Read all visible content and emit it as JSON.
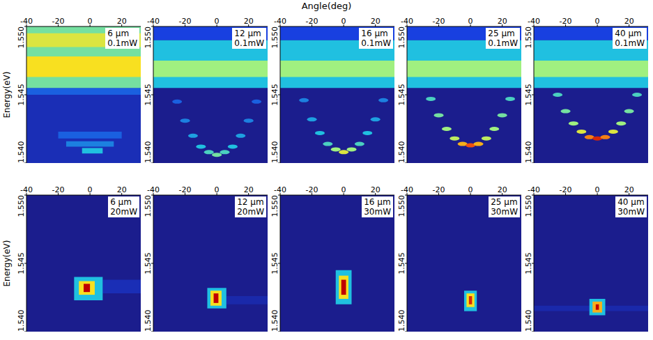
{
  "xlabel": "Angle(deg)",
  "chart_data": [
    {
      "type": "heatmap",
      "ylabel": "Energy(eV)",
      "annotations": [
        "6 μm",
        "0.1mW"
      ],
      "xlim": [
        -40,
        32
      ],
      "ylim": [
        1.54,
        1.55
      ],
      "xticks": [
        -40,
        -20,
        0,
        20
      ],
      "yticks": [
        {
          "value": 1.54,
          "label": "1.540"
        },
        1.545,
        {
          "value": 1.55,
          "label": "1.550"
        }
      ],
      "cells": [
        {
          "x": [
            -40,
            32
          ],
          "y": [
            1.54,
            1.55
          ],
          "value": 0.15
        },
        {
          "x": [
            -40,
            32
          ],
          "y": [
            1.545,
            1.5455
          ],
          "value": 0.3
        },
        {
          "x": [
            -40,
            32
          ],
          "y": [
            1.5455,
            1.55
          ],
          "value": 0.55
        },
        {
          "x": [
            -40,
            32
          ],
          "y": [
            1.5463,
            1.5478
          ],
          "value": 0.75
        },
        {
          "x": [
            -40,
            32
          ],
          "y": [
            1.5485,
            1.5495
          ],
          "value": 0.7
        },
        {
          "x": [
            -20,
            20
          ],
          "y": [
            1.5418,
            1.5423
          ],
          "value": 0.3
        },
        {
          "x": [
            -15,
            15
          ],
          "y": [
            1.5412,
            1.5416
          ],
          "value": 0.35
        },
        {
          "x": [
            -5,
            8
          ],
          "y": [
            1.5407,
            1.5411
          ],
          "value": 0.45
        }
      ],
      "points": {
        "x": [],
        "y": [],
        "values": []
      }
    },
    {
      "type": "heatmap",
      "annotations": [
        "12 μm",
        "0.1mW"
      ],
      "xlim": [
        -40,
        32
      ],
      "ylim": [
        1.54,
        1.55
      ],
      "xticks": [
        -40,
        -20,
        0,
        20
      ],
      "yticks": [
        {
          "value": 1.54,
          "label": "1.540"
        },
        1.545,
        {
          "value": 1.55,
          "label": "1.550"
        }
      ],
      "cells": [
        {
          "x": [
            -40,
            32
          ],
          "y": [
            1.54,
            1.55
          ],
          "value": 0.05
        },
        {
          "x": [
            -40,
            32
          ],
          "y": [
            1.5455,
            1.549
          ],
          "value": 0.45
        },
        {
          "x": [
            -40,
            32
          ],
          "y": [
            1.5463,
            1.5475
          ],
          "value": 0.6
        },
        {
          "x": [
            -40,
            32
          ],
          "y": [
            1.549,
            1.55
          ],
          "value": 0.25
        }
      ],
      "points": {
        "x": [
          -25,
          -20,
          -15,
          -10,
          -5,
          0,
          5,
          10,
          15,
          20,
          25
        ],
        "y": [
          1.5445,
          1.5431,
          1.542,
          1.5412,
          1.5408,
          1.5406,
          1.5408,
          1.5412,
          1.542,
          1.5431,
          1.5445
        ],
        "values": [
          0.3,
          0.35,
          0.4,
          0.45,
          0.5,
          0.55,
          0.5,
          0.45,
          0.4,
          0.35,
          0.3
        ]
      }
    },
    {
      "type": "heatmap",
      "annotations": [
        "16 μm",
        "0.1mW"
      ],
      "xlim": [
        -40,
        32
      ],
      "ylim": [
        1.54,
        1.55
      ],
      "xticks": [
        -40,
        -20,
        0,
        20
      ],
      "yticks": [
        {
          "value": 1.54,
          "label": "1.540"
        },
        1.545,
        {
          "value": 1.55,
          "label": "1.550"
        }
      ],
      "cells": [
        {
          "x": [
            -40,
            32
          ],
          "y": [
            1.54,
            1.55
          ],
          "value": 0.05
        },
        {
          "x": [
            -40,
            32
          ],
          "y": [
            1.5455,
            1.549
          ],
          "value": 0.45
        },
        {
          "x": [
            -40,
            32
          ],
          "y": [
            1.5463,
            1.5475
          ],
          "value": 0.6
        },
        {
          "x": [
            -40,
            32
          ],
          "y": [
            1.549,
            1.55
          ],
          "value": 0.25
        }
      ],
      "points": {
        "x": [
          -25,
          -20,
          -15,
          -10,
          -5,
          0,
          5,
          10,
          15,
          20,
          25
        ],
        "y": [
          1.5446,
          1.5432,
          1.5422,
          1.5414,
          1.541,
          1.5408,
          1.541,
          1.5414,
          1.5422,
          1.5432,
          1.5446
        ],
        "values": [
          0.35,
          0.4,
          0.45,
          0.5,
          0.6,
          0.7,
          0.6,
          0.5,
          0.45,
          0.4,
          0.35
        ]
      }
    },
    {
      "type": "heatmap",
      "annotations": [
        "25 μm",
        "0.1mW"
      ],
      "xlim": [
        -40,
        32
      ],
      "ylim": [
        1.54,
        1.55
      ],
      "xticks": [
        -40,
        -20,
        0,
        20
      ],
      "yticks": [
        {
          "value": 1.54,
          "label": "1.540"
        },
        1.545,
        {
          "value": 1.55,
          "label": "1.550"
        }
      ],
      "cells": [
        {
          "x": [
            -40,
            32
          ],
          "y": [
            1.54,
            1.55
          ],
          "value": 0.05
        },
        {
          "x": [
            -40,
            32
          ],
          "y": [
            1.5455,
            1.549
          ],
          "value": 0.45
        },
        {
          "x": [
            -40,
            32
          ],
          "y": [
            1.5463,
            1.5475
          ],
          "value": 0.6
        },
        {
          "x": [
            -40,
            32
          ],
          "y": [
            1.549,
            1.55
          ],
          "value": 0.25
        }
      ],
      "points": {
        "x": [
          -25,
          -20,
          -15,
          -10,
          -5,
          0,
          5,
          10,
          15,
          20,
          25
        ],
        "y": [
          1.5447,
          1.5435,
          1.5425,
          1.5418,
          1.5414,
          1.5413,
          1.5414,
          1.5418,
          1.5425,
          1.5435,
          1.5447
        ],
        "values": [
          0.5,
          0.55,
          0.6,
          0.65,
          0.8,
          0.9,
          0.8,
          0.65,
          0.6,
          0.55,
          0.5
        ]
      }
    },
    {
      "type": "heatmap",
      "annotations": [
        "40 μm",
        "0.1mW"
      ],
      "xlim": [
        -40,
        32
      ],
      "ylim": [
        1.54,
        1.55
      ],
      "xticks": [
        -40,
        -20,
        0,
        20
      ],
      "yticks": [
        {
          "value": 1.54,
          "label": "1.540"
        },
        1.545,
        {
          "value": 1.55,
          "label": "1.550"
        }
      ],
      "cells": [
        {
          "x": [
            -40,
            32
          ],
          "y": [
            1.54,
            1.55
          ],
          "value": 0.05
        },
        {
          "x": [
            -40,
            32
          ],
          "y": [
            1.5455,
            1.549
          ],
          "value": 0.45
        },
        {
          "x": [
            -40,
            32
          ],
          "y": [
            1.5463,
            1.5475
          ],
          "value": 0.6
        },
        {
          "x": [
            -40,
            32
          ],
          "y": [
            1.549,
            1.55
          ],
          "value": 0.25
        }
      ],
      "points": {
        "x": [
          -25,
          -20,
          -15,
          -10,
          -5,
          0,
          5,
          10,
          15,
          20,
          25
        ],
        "y": [
          1.545,
          1.5438,
          1.5429,
          1.5423,
          1.5419,
          1.5418,
          1.5419,
          1.5423,
          1.5429,
          1.5438,
          1.545
        ],
        "values": [
          0.5,
          0.55,
          0.6,
          0.7,
          0.85,
          0.95,
          0.85,
          0.7,
          0.6,
          0.55,
          0.5
        ]
      }
    },
    {
      "type": "heatmap",
      "ylabel": "Energy(eV)",
      "annotations": [
        "6 μm",
        "20mW"
      ],
      "xlim": [
        -40,
        32
      ],
      "ylim": [
        1.54,
        1.55
      ],
      "xticks": [
        -40,
        -20,
        0,
        20
      ],
      "yticks": [
        {
          "value": 1.54,
          "label": "1.540"
        },
        1.545,
        {
          "value": 1.55,
          "label": "1.550"
        }
      ],
      "cells": [
        {
          "x": [
            -40,
            32
          ],
          "y": [
            1.54,
            1.55
          ],
          "value": 0.05
        },
        {
          "x": [
            8,
            32
          ],
          "y": [
            1.5428,
            1.5438
          ],
          "value": 0.15
        },
        {
          "x": [
            -10,
            8
          ],
          "y": [
            1.5423,
            1.544
          ],
          "value": 0.45
        },
        {
          "x": [
            -7,
            3
          ],
          "y": [
            1.5427,
            1.5437
          ],
          "value": 0.75
        },
        {
          "x": [
            -4,
            0
          ],
          "y": [
            1.5429,
            1.5435
          ],
          "value": 1.0
        }
      ],
      "points": {
        "x": [],
        "y": [],
        "values": []
      }
    },
    {
      "type": "heatmap",
      "annotations": [
        "12 μm",
        "20mW"
      ],
      "xlim": [
        -40,
        32
      ],
      "ylim": [
        1.54,
        1.55
      ],
      "xticks": [
        -40,
        -20,
        0,
        20
      ],
      "yticks": [
        {
          "value": 1.54,
          "label": "1.540"
        },
        1.545,
        {
          "value": 1.55,
          "label": "1.550"
        }
      ],
      "cells": [
        {
          "x": [
            -40,
            32
          ],
          "y": [
            1.54,
            1.55
          ],
          "value": 0.05
        },
        {
          "x": [
            6,
            32
          ],
          "y": [
            1.542,
            1.5426
          ],
          "value": 0.12
        },
        {
          "x": [
            -6,
            6
          ],
          "y": [
            1.5417,
            1.5432
          ],
          "value": 0.45
        },
        {
          "x": [
            -4,
            3
          ],
          "y": [
            1.5419,
            1.543
          ],
          "value": 0.75
        },
        {
          "x": [
            -2,
            1
          ],
          "y": [
            1.5421,
            1.5428
          ],
          "value": 1.0
        }
      ],
      "points": {
        "x": [],
        "y": [],
        "values": []
      }
    },
    {
      "type": "heatmap",
      "annotations": [
        "16 μm",
        "30mW"
      ],
      "xlim": [
        -40,
        32
      ],
      "ylim": [
        1.54,
        1.55
      ],
      "xticks": [
        -40,
        -20,
        0,
        20
      ],
      "yticks": [
        {
          "value": 1.54,
          "label": "1.540"
        },
        1.545,
        {
          "value": 1.55,
          "label": "1.550"
        }
      ],
      "cells": [
        {
          "x": [
            -40,
            32
          ],
          "y": [
            1.54,
            1.55
          ],
          "value": 0.05
        },
        {
          "x": [
            -5,
            5
          ],
          "y": [
            1.542,
            1.5445
          ],
          "value": 0.45
        },
        {
          "x": [
            -3,
            3
          ],
          "y": [
            1.5424,
            1.5441
          ],
          "value": 0.75
        },
        {
          "x": [
            -1.5,
            1.5
          ],
          "y": [
            1.5427,
            1.5438
          ],
          "value": 1.0
        }
      ],
      "points": {
        "x": [],
        "y": [],
        "values": []
      }
    },
    {
      "type": "heatmap",
      "annotations": [
        "25 μm",
        "30mW"
      ],
      "xlim": [
        -40,
        32
      ],
      "ylim": [
        1.54,
        1.55
      ],
      "xticks": [
        -40,
        -20,
        0,
        20
      ],
      "yticks": [
        {
          "value": 1.54,
          "label": "1.540"
        },
        1.545,
        {
          "value": 1.55,
          "label": "1.550"
        }
      ],
      "cells": [
        {
          "x": [
            -40,
            32
          ],
          "y": [
            1.54,
            1.55
          ],
          "value": 0.05
        },
        {
          "x": [
            -4,
            4
          ],
          "y": [
            1.5415,
            1.543
          ],
          "value": 0.45
        },
        {
          "x": [
            -2.5,
            2.5
          ],
          "y": [
            1.5418,
            1.5428
          ],
          "value": 0.75
        },
        {
          "x": [
            -1,
            1
          ],
          "y": [
            1.542,
            1.5426
          ],
          "value": 0.95
        }
      ],
      "points": {
        "x": [],
        "y": [],
        "values": []
      }
    },
    {
      "type": "heatmap",
      "annotations": [
        "40 μm",
        "30mW"
      ],
      "xlim": [
        -40,
        32
      ],
      "ylim": [
        1.54,
        1.55
      ],
      "xticks": [
        -40,
        -20,
        0,
        20
      ],
      "yticks": [
        {
          "value": 1.54,
          "label": "1.540"
        },
        1.545,
        {
          "value": 1.55,
          "label": "1.550"
        }
      ],
      "cells": [
        {
          "x": [
            -40,
            32
          ],
          "y": [
            1.54,
            1.55
          ],
          "value": 0.05
        },
        {
          "x": [
            -40,
            32
          ],
          "y": [
            1.5415,
            1.5419
          ],
          "value": 0.12
        },
        {
          "x": [
            -5,
            5
          ],
          "y": [
            1.5412,
            1.5424
          ],
          "value": 0.45
        },
        {
          "x": [
            -3,
            3
          ],
          "y": [
            1.5414,
            1.5422
          ],
          "value": 0.8
        },
        {
          "x": [
            -1,
            1
          ],
          "y": [
            1.5416,
            1.542
          ],
          "value": 1.0
        }
      ],
      "points": {
        "x": [],
        "y": [],
        "values": []
      }
    }
  ]
}
